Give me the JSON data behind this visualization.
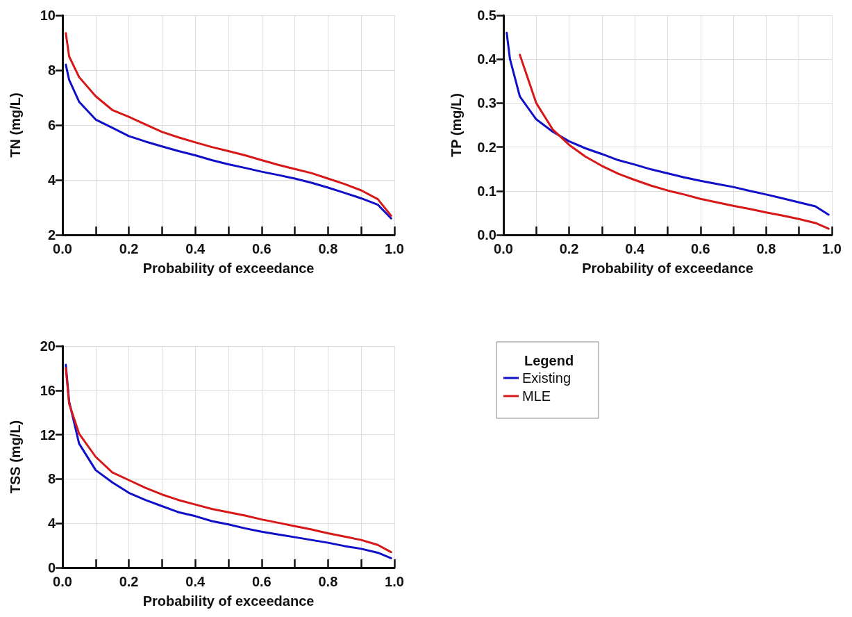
{
  "chart_data": [
    {
      "type": "line",
      "xlabel": "Probability of exceedance",
      "ylabel": "TN (mg/L)",
      "x": [
        0.01,
        0.02,
        0.05,
        0.1,
        0.15,
        0.2,
        0.25,
        0.3,
        0.35,
        0.4,
        0.45,
        0.5,
        0.55,
        0.6,
        0.65,
        0.7,
        0.75,
        0.8,
        0.85,
        0.9,
        0.95,
        0.99
      ],
      "series": [
        {
          "color": "#1010c8",
          "values": [
            8.2,
            7.65,
            6.85,
            6.2,
            5.9,
            5.6,
            5.4,
            5.22,
            5.05,
            4.9,
            4.72,
            4.57,
            4.44,
            4.3,
            4.18,
            4.05,
            3.9,
            3.72,
            3.53,
            3.33,
            3.1,
            2.6
          ]
        },
        {
          "color": "#d81818",
          "values": [
            9.35,
            8.5,
            7.75,
            7.05,
            6.55,
            6.3,
            6.02,
            5.75,
            5.55,
            5.37,
            5.2,
            5.05,
            4.9,
            4.72,
            4.55,
            4.4,
            4.25,
            4.05,
            3.85,
            3.62,
            3.3,
            2.7
          ]
        }
      ],
      "xlim": [
        0,
        1
      ],
      "xticks": [
        {
          "value": 0,
          "label": "0.0"
        },
        {
          "value": 0.1,
          "label": null
        },
        {
          "value": 0.2,
          "label": "0.2"
        },
        {
          "value": 0.3,
          "label": null
        },
        {
          "value": 0.4,
          "label": "0.4"
        },
        {
          "value": 0.5,
          "label": null
        },
        {
          "value": 0.6,
          "label": "0.6"
        },
        {
          "value": 0.7,
          "label": null
        },
        {
          "value": 0.8,
          "label": "0.8"
        },
        {
          "value": 0.9,
          "label": null
        },
        {
          "value": 1,
          "label": "1.0"
        }
      ],
      "ylim": [
        2,
        10
      ],
      "yticks": [
        2,
        4,
        6,
        8,
        10
      ],
      "grid": true,
      "marker": "none",
      "legend": false
    },
    {
      "type": "line",
      "xlabel": "Probability of exceedance",
      "ylabel": "TP (mg/L)",
      "x": [
        0.01,
        0.02,
        0.05,
        0.1,
        0.15,
        0.2,
        0.25,
        0.3,
        0.35,
        0.4,
        0.45,
        0.5,
        0.55,
        0.6,
        0.65,
        0.7,
        0.75,
        0.8,
        0.85,
        0.9,
        0.95,
        0.99
      ],
      "series": [
        {
          "color": "#1010c8",
          "values": [
            0.46,
            0.4,
            0.315,
            0.263,
            0.235,
            0.213,
            0.197,
            0.184,
            0.17,
            0.16,
            0.149,
            0.14,
            0.131,
            0.123,
            0.116,
            0.109,
            0.1,
            0.092,
            0.083,
            0.074,
            0.065,
            0.046
          ]
        },
        {
          "color": "#d81818",
          "x": [
            0.05,
            0.1,
            0.15,
            0.2,
            0.25,
            0.3,
            0.35,
            0.4,
            0.45,
            0.5,
            0.55,
            0.6,
            0.65,
            0.7,
            0.75,
            0.8,
            0.85,
            0.9,
            0.95,
            0.99
          ],
          "values": [
            0.41,
            0.3,
            0.24,
            0.205,
            0.178,
            0.157,
            0.139,
            0.125,
            0.112,
            0.101,
            0.092,
            0.082,
            0.074,
            0.066,
            0.059,
            0.051,
            0.044,
            0.036,
            0.027,
            0.014
          ]
        }
      ],
      "xlim": [
        0,
        1
      ],
      "xticks": [
        {
          "value": 0,
          "label": "0.0"
        },
        {
          "value": 0.1,
          "label": null
        },
        {
          "value": 0.2,
          "label": "0.2"
        },
        {
          "value": 0.3,
          "label": null
        },
        {
          "value": 0.4,
          "label": "0.4"
        },
        {
          "value": 0.5,
          "label": null
        },
        {
          "value": 0.6,
          "label": "0.6"
        },
        {
          "value": 0.7,
          "label": null
        },
        {
          "value": 0.8,
          "label": "0.8"
        },
        {
          "value": 0.9,
          "label": null
        },
        {
          "value": 1,
          "label": "1.0"
        }
      ],
      "ylim": [
        0,
        0.5
      ],
      "yticks": [
        {
          "value": 0,
          "label": "0.0"
        },
        0.1,
        0.2,
        0.3,
        0.4,
        0.5
      ],
      "grid": true,
      "marker": "none",
      "legend": false
    },
    {
      "type": "line",
      "xlabel": "Probability of exceedance",
      "ylabel": "TSS (mg/L)",
      "legend_title": "Legend",
      "x": [
        0.01,
        0.02,
        0.05,
        0.1,
        0.15,
        0.2,
        0.25,
        0.3,
        0.35,
        0.4,
        0.45,
        0.5,
        0.55,
        0.6,
        0.65,
        0.7,
        0.75,
        0.8,
        0.85,
        0.9,
        0.95,
        0.99
      ],
      "series": [
        {
          "name": "Existing",
          "color": "#1010c8",
          "values": [
            18.3,
            15.0,
            11.2,
            8.8,
            7.7,
            6.75,
            6.1,
            5.55,
            5.0,
            4.65,
            4.2,
            3.9,
            3.55,
            3.25,
            3.0,
            2.75,
            2.5,
            2.25,
            1.95,
            1.7,
            1.35,
            0.85
          ]
        },
        {
          "name": "MLE",
          "color": "#d81818",
          "values": [
            18.0,
            14.8,
            12.1,
            10.0,
            8.6,
            7.9,
            7.2,
            6.6,
            6.1,
            5.7,
            5.3,
            5.0,
            4.7,
            4.35,
            4.05,
            3.75,
            3.45,
            3.1,
            2.8,
            2.5,
            2.05,
            1.4
          ]
        }
      ],
      "xlim": [
        0,
        1
      ],
      "xticks": [
        {
          "value": 0,
          "label": "0.0"
        },
        {
          "value": 0.1,
          "label": null
        },
        {
          "value": 0.2,
          "label": "0.2"
        },
        {
          "value": 0.3,
          "label": null
        },
        {
          "value": 0.4,
          "label": "0.4"
        },
        {
          "value": 0.5,
          "label": null
        },
        {
          "value": 0.6,
          "label": "0.6"
        },
        {
          "value": 0.7,
          "label": null
        },
        {
          "value": 0.8,
          "label": "0.8"
        },
        {
          "value": 0.9,
          "label": null
        },
        {
          "value": 1,
          "label": "1.0"
        }
      ],
      "ylim": [
        0,
        20
      ],
      "yticks": [
        0,
        4,
        8,
        12,
        16,
        20
      ],
      "grid": true,
      "marker": "none",
      "legend": "right"
    }
  ]
}
